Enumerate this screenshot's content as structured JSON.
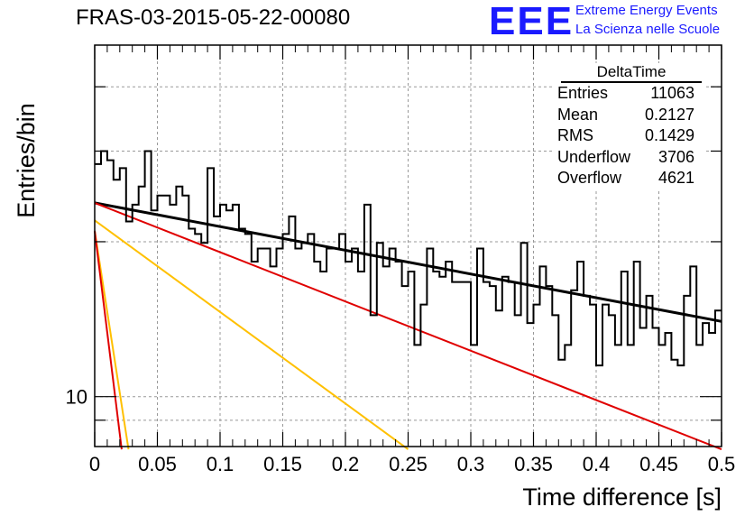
{
  "header": {
    "title": "FRAS-03-2015-05-22-00080",
    "logo": "EEE",
    "org_line1": "Extreme Energy Events",
    "org_line2": "La Scienza nelle Scuole"
  },
  "stats_box": {
    "title": "DeltaTime",
    "rows": [
      {
        "label": "Entries",
        "value": "11063"
      },
      {
        "label": "Mean",
        "value": "0.2127"
      },
      {
        "label": "RMS",
        "value": "0.1429"
      },
      {
        "label": "Underflow",
        "value": "3706"
      },
      {
        "label": "Overflow",
        "value": "4621"
      }
    ]
  },
  "colors": {
    "histogram": "#000000",
    "fit_total": "#000000",
    "component_red": "#e00000",
    "component_orange": "#ffc000",
    "grid": "#999999"
  },
  "chart_data": {
    "type": "line",
    "xlabel": "Time difference [s]",
    "ylabel": "Entries/bin",
    "xlim": [
      0,
      0.5
    ],
    "ylim": [
      8.0,
      48.2
    ],
    "log_y": true,
    "grid": true,
    "x_ticks": [
      "0",
      "0.05",
      "0.1",
      "0.15",
      "0.2",
      "0.25",
      "0.3",
      "0.35",
      "0.4",
      "0.45",
      "0.5"
    ],
    "y_ticks": [
      "10"
    ],
    "bin_width": 0.005,
    "histogram": [
      28.3,
      30.0,
      28.8,
      26.4,
      27.8,
      21.9,
      23.6,
      25.6,
      30.0,
      23.0,
      24.6,
      24.6,
      23.6,
      25.6,
      24.6,
      21.2,
      20.7,
      19.9,
      27.8,
      22.4,
      23.6,
      23.0,
      23.6,
      21.2,
      20.7,
      18.3,
      19.4,
      19.4,
      17.9,
      19.4,
      20.7,
      22.4,
      19.4,
      19.9,
      20.7,
      18.3,
      17.5,
      19.4,
      19.4,
      20.7,
      18.3,
      19.4,
      17.5,
      23.6,
      14.4,
      19.9,
      17.9,
      19.4,
      18.3,
      16.4,
      17.5,
      12.6,
      15.1,
      19.4,
      17.5,
      17.1,
      18.3,
      16.7,
      16.7,
      16.7,
      12.6,
      19.4,
      16.7,
      16.4,
      14.7,
      17.1,
      16.7,
      14.4,
      19.9,
      13.9,
      15.1,
      17.9,
      16.4,
      14.4,
      11.8,
      12.6,
      16.1,
      18.3,
      15.7,
      15.1,
      11.5,
      15.1,
      14.4,
      12.6,
      17.5,
      12.6,
      18.3,
      13.6,
      15.7,
      13.6,
      12.6,
      13.3,
      11.8,
      11.5,
      15.7,
      17.9,
      12.6,
      13.9,
      13.3,
      14.7
    ],
    "series": [
      {
        "name": "",
        "role": "total_fit",
        "x": [
          0,
          0.5
        ],
        "y": [
          23.8,
          14.0
        ]
      },
      {
        "name": "",
        "role": "slow_component_red",
        "x": [
          0,
          0.5
        ],
        "y": [
          23.8,
          7.9
        ]
      },
      {
        "name": "",
        "role": "mid_component_orange",
        "x": [
          0,
          0.25
        ],
        "y": [
          22.0,
          7.9
        ]
      },
      {
        "name": "",
        "role": "fast_component_orange",
        "x": [
          0,
          0.027
        ],
        "y": [
          21.0,
          7.9
        ]
      },
      {
        "name": "",
        "role": "fast_component_red",
        "x": [
          0,
          0.0215
        ],
        "y": [
          21.0,
          7.9
        ]
      }
    ]
  }
}
